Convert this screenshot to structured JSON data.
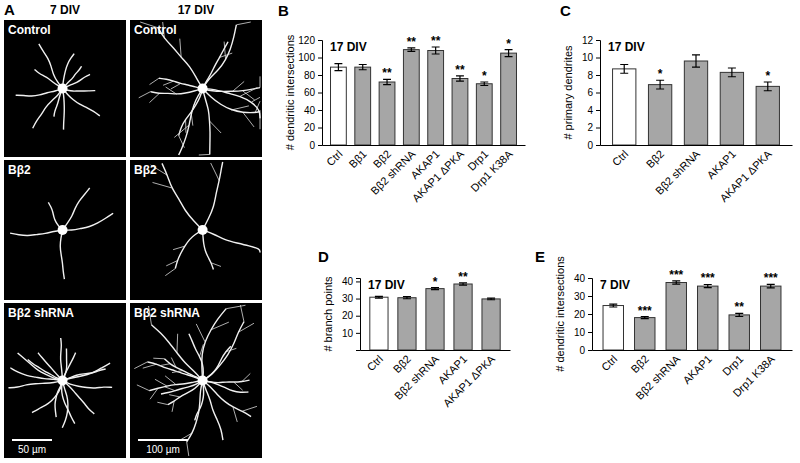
{
  "image_panel": {
    "panel_label": "A",
    "columns": [
      "7 DIV",
      "17 DIV"
    ],
    "rows": [
      "Control",
      "Bβ2",
      "Bβ2 shRNA"
    ],
    "scale_bars": [
      "50 µm",
      "100 µm"
    ]
  },
  "chart_data": [
    {
      "type": "bar",
      "panel_label": "B",
      "title": "17 DIV",
      "y_label": "# dendritic intersections",
      "categories": [
        "Ctrl",
        "Bβ1",
        "Bβ2",
        "Bβ2 shRNA",
        "AKAP1",
        "AKAP1 ΔPKA",
        "Drp1",
        "Drp1 K38A"
      ],
      "values": [
        89,
        89,
        72,
        109,
        108,
        76,
        70,
        105
      ],
      "errors": [
        4,
        3,
        3,
        2,
        4,
        3,
        2,
        4
      ],
      "significance": [
        null,
        null,
        "**",
        "**",
        "**",
        "**",
        "*",
        "*"
      ],
      "colors": [
        "#ffffff",
        "#a6a6a6",
        "#a6a6a6",
        "#a6a6a6",
        "#a6a6a6",
        "#a6a6a6",
        "#a6a6a6",
        "#a6a6a6"
      ],
      "ylim": [
        0,
        120
      ],
      "yticks": [
        0,
        20,
        40,
        60,
        80,
        100,
        120
      ]
    },
    {
      "type": "bar",
      "panel_label": "C",
      "title": "17 DIV",
      "y_label": "# primary dendrites",
      "categories": [
        "Ctrl",
        "Bβ2",
        "Bβ2 shRNA",
        "AKAP1",
        "AKAP1 ΔPKA"
      ],
      "values": [
        8.7,
        6.9,
        9.6,
        8.3,
        6.7
      ],
      "errors": [
        0.5,
        0.5,
        0.7,
        0.5,
        0.5
      ],
      "significance": [
        null,
        "*",
        null,
        null,
        "*"
      ],
      "colors": [
        "#ffffff",
        "#a6a6a6",
        "#a6a6a6",
        "#a6a6a6",
        "#a6a6a6"
      ],
      "ylim": [
        0,
        12
      ],
      "yticks": [
        0,
        2,
        4,
        6,
        8,
        10,
        12
      ]
    },
    {
      "type": "bar",
      "panel_label": "D",
      "title": "17 DIV",
      "y_label": "# branch points",
      "categories": [
        "Ctrl",
        "Bβ2",
        "Bβ2 shRNA",
        "AKAP1",
        "AKAP1 ΔPKA"
      ],
      "values": [
        30.8,
        30.5,
        35.8,
        38.5,
        29.8
      ],
      "errors": [
        0.5,
        0.6,
        0.6,
        0.6,
        0.5
      ],
      "significance": [
        null,
        null,
        "*",
        "**",
        null
      ],
      "colors": [
        "#ffffff",
        "#a6a6a6",
        "#a6a6a6",
        "#a6a6a6",
        "#a6a6a6"
      ],
      "ylim": [
        0,
        42
      ],
      "yticks": [
        10,
        20,
        30,
        40
      ]
    },
    {
      "type": "bar",
      "panel_label": "E",
      "title": "7 DIV",
      "y_label": "# dendritic intersections",
      "categories": [
        "Ctrl",
        "Bβ2",
        "Bβ2 shRNA",
        "AKAP1",
        "Drp1",
        "Drp1 K38A"
      ],
      "values": [
        24.7,
        18,
        37.5,
        35.5,
        19.5,
        35.5
      ],
      "errors": [
        0.8,
        0.6,
        0.9,
        0.9,
        0.9,
        1
      ],
      "significance": [
        null,
        "***",
        "***",
        "***",
        "**",
        "***"
      ],
      "colors": [
        "#ffffff",
        "#a6a6a6",
        "#a6a6a6",
        "#a6a6a6",
        "#a6a6a6",
        "#a6a6a6"
      ],
      "ylim": [
        0,
        40
      ],
      "yticks": [
        0,
        10,
        20,
        30,
        40
      ]
    }
  ]
}
